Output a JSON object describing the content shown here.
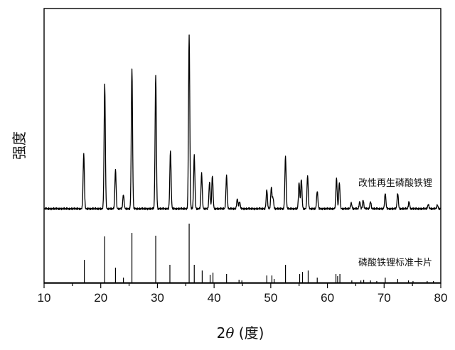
{
  "chart_data": {
    "type": "line",
    "xlabel_prefix": "2",
    "xlabel_theta": "θ",
    "xlabel_suffix": " (度)",
    "ylabel": "强度",
    "xlim": [
      10,
      80
    ],
    "x_ticks": [
      10,
      20,
      30,
      40,
      50,
      60,
      70,
      80
    ],
    "grid": false,
    "y_tick_labels": false,
    "series": [
      {
        "name": "改性再生磷酸铁锂",
        "kind": "pattern",
        "baseline": 3,
        "peaks": [
          [
            17.0,
            78
          ],
          [
            20.7,
            176
          ],
          [
            22.6,
            55
          ],
          [
            24.0,
            20
          ],
          [
            25.5,
            198
          ],
          [
            29.7,
            189
          ],
          [
            32.3,
            82
          ],
          [
            35.6,
            245
          ],
          [
            36.5,
            75
          ],
          [
            37.8,
            50
          ],
          [
            39.2,
            38
          ],
          [
            39.7,
            47
          ],
          [
            42.2,
            47
          ],
          [
            44.1,
            14
          ],
          [
            44.5,
            10
          ],
          [
            49.3,
            27
          ],
          [
            50.1,
            30
          ],
          [
            50.4,
            15
          ],
          [
            52.6,
            74
          ],
          [
            55.0,
            37
          ],
          [
            55.4,
            42
          ],
          [
            56.5,
            47
          ],
          [
            58.2,
            25
          ],
          [
            61.6,
            43
          ],
          [
            62.1,
            37
          ],
          [
            64.2,
            8
          ],
          [
            65.7,
            10
          ],
          [
            66.3,
            12
          ],
          [
            67.6,
            10
          ],
          [
            70.2,
            22
          ],
          [
            72.4,
            22
          ],
          [
            74.4,
            10
          ],
          [
            77.8,
            6
          ],
          [
            79.4,
            5
          ]
        ]
      },
      {
        "name": "磷酸铁锂标准卡片",
        "kind": "sticks",
        "sticks": [
          [
            17.1,
            32
          ],
          [
            20.7,
            65
          ],
          [
            22.6,
            21
          ],
          [
            24.0,
            7
          ],
          [
            25.5,
            70
          ],
          [
            29.7,
            66
          ],
          [
            32.2,
            25
          ],
          [
            35.6,
            83
          ],
          [
            36.5,
            25
          ],
          [
            37.9,
            17
          ],
          [
            39.3,
            11
          ],
          [
            39.8,
            14
          ],
          [
            42.2,
            12
          ],
          [
            44.4,
            4
          ],
          [
            44.9,
            3
          ],
          [
            49.3,
            10
          ],
          [
            50.2,
            10
          ],
          [
            50.6,
            5
          ],
          [
            52.6,
            25
          ],
          [
            55.1,
            12
          ],
          [
            55.6,
            15
          ],
          [
            56.6,
            17
          ],
          [
            58.2,
            7
          ],
          [
            61.5,
            12
          ],
          [
            61.8,
            9
          ],
          [
            62.2,
            12
          ],
          [
            64.3,
            3
          ],
          [
            65.9,
            3
          ],
          [
            66.4,
            4
          ],
          [
            67.6,
            3
          ],
          [
            68.7,
            2
          ],
          [
            70.2,
            7
          ],
          [
            72.4,
            5
          ],
          [
            74.3,
            3
          ],
          [
            75.1,
            2
          ],
          [
            77.6,
            2
          ],
          [
            78.7,
            2
          ]
        ]
      }
    ]
  }
}
